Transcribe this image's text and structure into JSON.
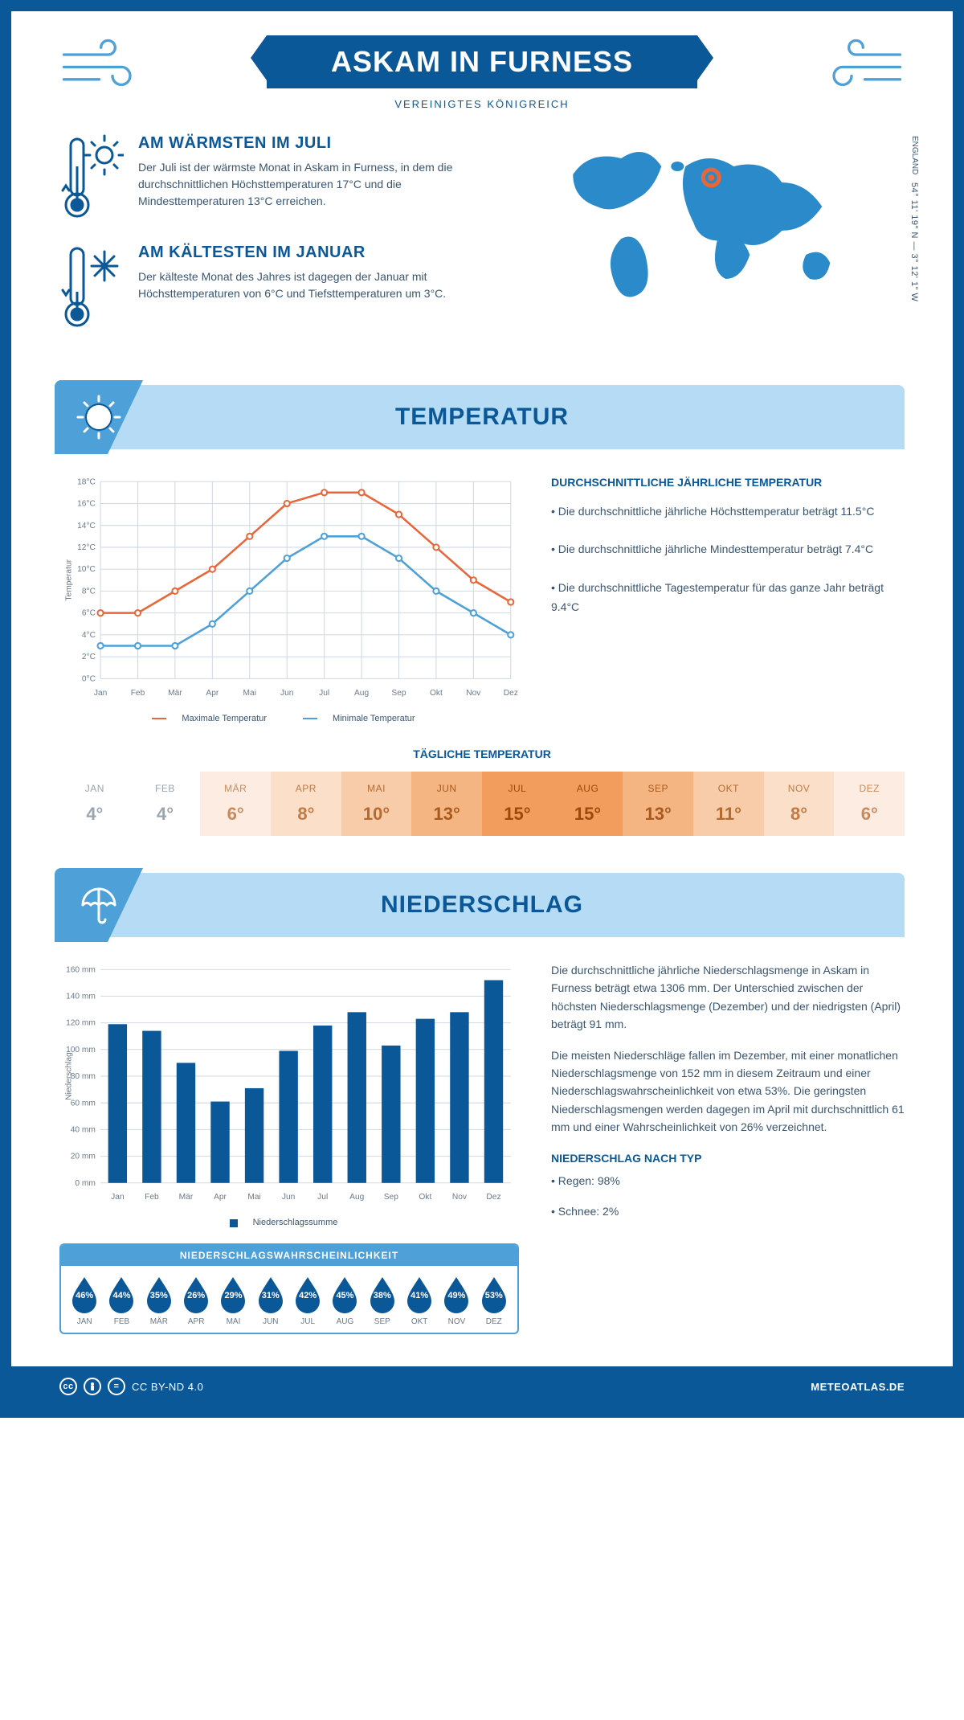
{
  "colors": {
    "primary": "#0b5899",
    "accent": "#4da0d8",
    "banner": "#b6dcf5",
    "text": "#3a5570",
    "orange": "#e8663a"
  },
  "header": {
    "title": "ASKAM IN FURNESS",
    "subtitle": "VEREINIGTES KÖNIGREICH",
    "coords": "54° 11' 19\" N — 3° 12' 1\" W",
    "region": "ENGLAND"
  },
  "facts": {
    "warmest": {
      "title": "AM WÄRMSTEN IM JULI",
      "body": "Der Juli ist der wärmste Monat in Askam in Furness, in dem die durchschnittlichen Höchsttemperaturen 17°C und die Mindesttemperaturen 13°C erreichen."
    },
    "coldest": {
      "title": "AM KÄLTESTEN IM JANUAR",
      "body": "Der kälteste Monat des Jahres ist dagegen der Januar mit Höchsttemperaturen von 6°C und Tiefsttemperaturen um 3°C."
    }
  },
  "temperature": {
    "section_title": "TEMPERATUR",
    "desc_title": "DURCHSCHNITTLICHE JÄHRLICHE TEMPERATUR",
    "b1": "• Die durchschnittliche jährliche Höchsttemperatur beträgt 11.5°C",
    "b2": "• Die durchschnittliche jährliche Mindesttemperatur beträgt 7.4°C",
    "b3": "• Die durchschnittliche Tagestemperatur für das ganze Jahr beträgt 9.4°C",
    "chart": {
      "y_label": "Temperatur",
      "months": [
        "Jan",
        "Feb",
        "Mär",
        "Apr",
        "Mai",
        "Jun",
        "Jul",
        "Aug",
        "Sep",
        "Okt",
        "Nov",
        "Dez"
      ],
      "max_color": "#e8663a",
      "min_color": "#4da0d8",
      "max_values": [
        6,
        6,
        8,
        10,
        13,
        16,
        17,
        17,
        15,
        12,
        9,
        7
      ],
      "min_values": [
        3,
        3,
        3,
        5,
        8,
        11,
        13,
        13,
        11,
        8,
        6,
        4
      ],
      "ylim": [
        0,
        18
      ],
      "ytick_step": 2,
      "grid_color": "#cfd8e2",
      "legend_max": "Maximale Temperatur",
      "legend_min": "Minimale Temperatur"
    },
    "daily": {
      "title": "TÄGLICHE TEMPERATUR",
      "months": [
        "JAN",
        "FEB",
        "MÄR",
        "APR",
        "MAI",
        "JUN",
        "JUL",
        "AUG",
        "SEP",
        "OKT",
        "NOV",
        "DEZ"
      ],
      "values": [
        "4°",
        "4°",
        "6°",
        "8°",
        "10°",
        "13°",
        "15°",
        "15°",
        "13°",
        "11°",
        "8°",
        "6°"
      ],
      "bg_colors": [
        "#ffffff",
        "#ffffff",
        "#fdece1",
        "#fbdfc9",
        "#f8cca8",
        "#f5b583",
        "#f29d5d",
        "#f29d5d",
        "#f5b583",
        "#f8cca8",
        "#fbdfc9",
        "#fdece1"
      ],
      "text_colors": [
        "#9aa5b0",
        "#9aa5b0",
        "#c88a5c",
        "#c07a46",
        "#b56a30",
        "#a85a1e",
        "#9b4a0c",
        "#9b4a0c",
        "#a85a1e",
        "#b56a30",
        "#c07a46",
        "#c88a5c"
      ]
    }
  },
  "precip": {
    "section_title": "NIEDERSCHLAG",
    "chart": {
      "y_label": "Niederschlag",
      "months": [
        "Jan",
        "Feb",
        "Mär",
        "Apr",
        "Mai",
        "Jun",
        "Jul",
        "Aug",
        "Sep",
        "Okt",
        "Nov",
        "Dez"
      ],
      "values": [
        119,
        114,
        90,
        61,
        71,
        99,
        118,
        128,
        103,
        123,
        128,
        152
      ],
      "ylim": [
        0,
        160
      ],
      "ytick_step": 20,
      "bar_color": "#0b5899",
      "grid_color": "#cfd8e2",
      "legend": "Niederschlagssumme"
    },
    "probability": {
      "title": "NIEDERSCHLAGSWAHRSCHEINLICHKEIT",
      "months": [
        "JAN",
        "FEB",
        "MÄR",
        "APR",
        "MAI",
        "JUN",
        "JUL",
        "AUG",
        "SEP",
        "OKT",
        "NOV",
        "DEZ"
      ],
      "values": [
        "46%",
        "44%",
        "35%",
        "26%",
        "29%",
        "31%",
        "42%",
        "45%",
        "38%",
        "41%",
        "49%",
        "53%"
      ]
    },
    "p1": "Die durchschnittliche jährliche Niederschlagsmenge in Askam in Furness beträgt etwa 1306 mm. Der Unterschied zwischen der höchsten Niederschlagsmenge (Dezember) und der niedrigsten (April) beträgt 91 mm.",
    "p2": "Die meisten Niederschläge fallen im Dezember, mit einer monatlichen Niederschlagsmenge von 152 mm in diesem Zeitraum und einer Niederschlagswahrscheinlichkeit von etwa 53%. Die geringsten Niederschlagsmengen werden dagegen im April mit durchschnittlich 61 mm und einer Wahrscheinlichkeit von 26% verzeichnet.",
    "type_title": "NIEDERSCHLAG NACH TYP",
    "type_rain": "• Regen: 98%",
    "type_snow": "• Schnee: 2%"
  },
  "footer": {
    "license": "CC BY-ND 4.0",
    "site": "METEOATLAS.DE"
  }
}
